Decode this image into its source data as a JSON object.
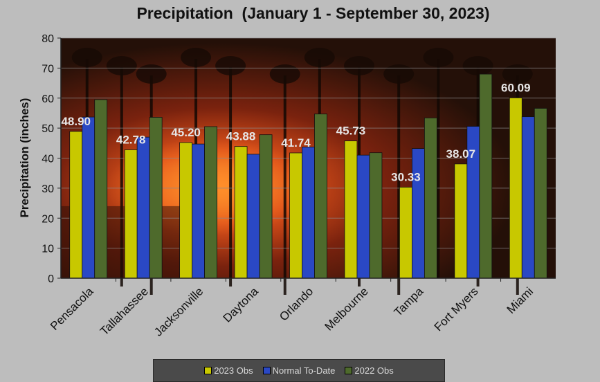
{
  "chart_data": {
    "type": "bar",
    "title": "Precipitation  (January 1 - September 30, 2023)",
    "ylabel": "Precipitation (inches)",
    "xlabel": "",
    "ylim": [
      0,
      80
    ],
    "yticks": [
      "0",
      "10",
      "20",
      "30",
      "40",
      "50",
      "60",
      "70",
      "80"
    ],
    "categories": [
      "Pensacola",
      "Tallahassee",
      "Jacksonville",
      "Daytona",
      "Orlando",
      "Melbourne",
      "Tampa",
      "Fort Myers",
      "Miami"
    ],
    "series": [
      {
        "name": "2023 Obs",
        "color": "#c8c800",
        "values": [
          48.9,
          42.78,
          45.2,
          43.88,
          41.74,
          45.73,
          30.33,
          38.07,
          60.09
        ]
      },
      {
        "name": "Normal To-Date",
        "color": "#2a48c4",
        "values": [
          53.7,
          47.0,
          44.7,
          41.3,
          43.7,
          41.0,
          43.2,
          50.6,
          53.8
        ]
      },
      {
        "name": "2022 Obs",
        "color": "#4e6a2c",
        "values": [
          59.5,
          53.6,
          50.5,
          47.8,
          54.7,
          41.8,
          53.4,
          68.0,
          56.6
        ]
      }
    ],
    "data_labels": [
      "48.90",
      "42.78",
      "45.20",
      "43.88",
      "41.74",
      "45.73",
      "30.33",
      "38.07",
      "60.09"
    ],
    "legend_position": "bottom",
    "grid": true
  }
}
